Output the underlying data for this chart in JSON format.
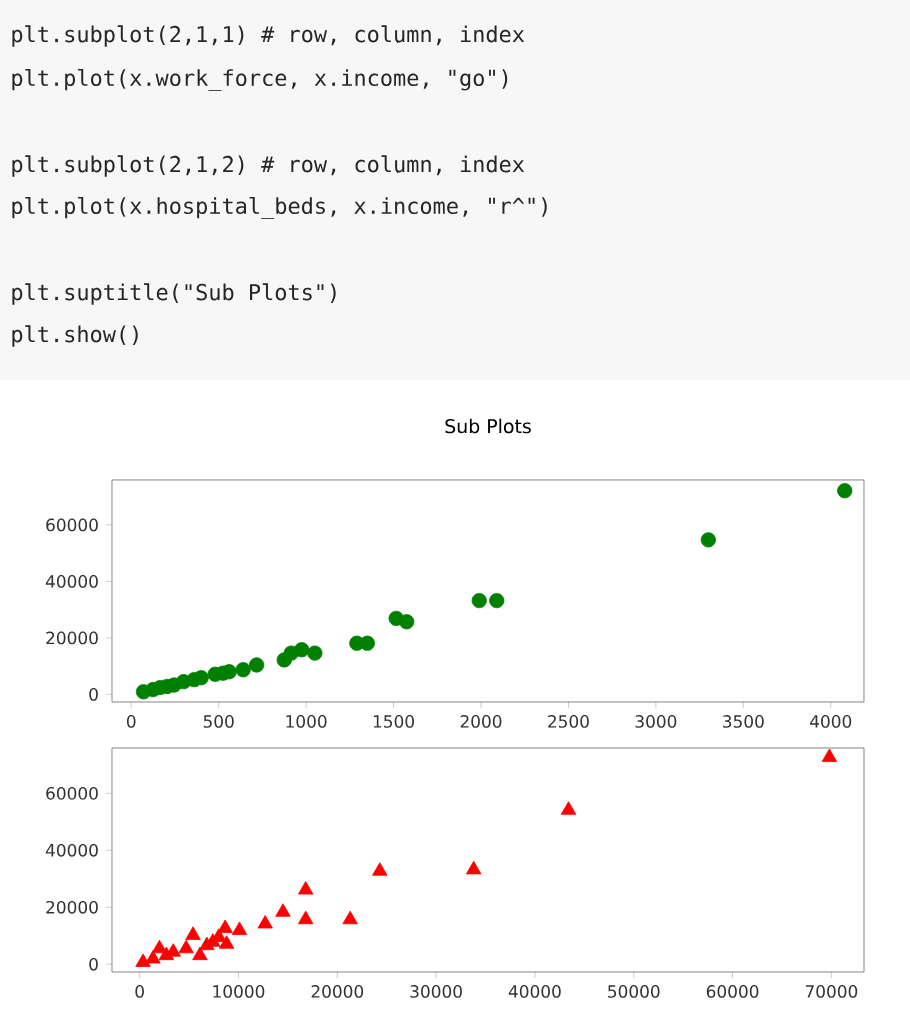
{
  "chart_data": [
    {
      "type": "scatter",
      "title": "Sub Plots",
      "annotations": [
        "plt.subplot(2,1,1) # row, column, index",
        "plt.plot(x.work_force, x.income, \"go\")",
        "plt.subplot(2,1,2) # row, column, index",
        "plt.plot(x.hospital_beds, x.income, \"r^\")",
        "plt.suptitle(\"Sub Plots\")",
        "plt.show()"
      ],
      "x": [
        4080,
        3300,
        1990,
        2090,
        1515,
        1575,
        1290,
        1350,
        1050,
        975,
        915,
        875,
        717,
        640,
        560,
        525,
        480,
        400,
        360,
        300,
        245,
        205,
        165,
        125,
        70
      ],
      "series": [
        {
          "color": "#008000",
          "values": [
            72100,
            54700,
            33200,
            33200,
            26900,
            25700,
            18100,
            18100,
            14600,
            15800,
            14600,
            12200,
            10400,
            8700,
            8000,
            7500,
            7100,
            5900,
            5200,
            4500,
            3300,
            2800,
            2400,
            1700,
            900
          ]
        }
      ],
      "marker": "circle",
      "xlim": [
        -110,
        4190
      ],
      "ylim": [
        -2700,
        75900
      ],
      "xticks": [
        0,
        500,
        1000,
        1500,
        2000,
        2500,
        3000,
        3500,
        4000
      ],
      "yticks": [
        0,
        20000,
        40000,
        60000
      ]
    },
    {
      "type": "scatter",
      "x": [
        69800,
        43400,
        33800,
        24300,
        16800,
        21300,
        16800,
        14500,
        12700,
        10100,
        8650,
        8000,
        5400,
        6800,
        2700,
        1350,
        340,
        6100,
        4700,
        3400,
        2000,
        7400,
        8800
      ],
      "series": [
        {
          "color": "#ff0000",
          "values": [
            72600,
            54100,
            33200,
            32700,
            26100,
            15700,
            15700,
            18300,
            14200,
            11900,
            12600,
            9500,
            10200,
            6600,
            3100,
            1900,
            700,
            3100,
            5500,
            4300,
            5500,
            7800,
            7100
          ]
        }
      ],
      "marker": "triangle",
      "xlim": [
        -2800,
        73300
      ],
      "ylim": [
        -2700,
        75900
      ],
      "xticks": [
        0,
        10000,
        20000,
        30000,
        40000,
        50000,
        60000,
        70000
      ],
      "yticks": [
        0,
        20000,
        40000,
        60000
      ]
    }
  ]
}
